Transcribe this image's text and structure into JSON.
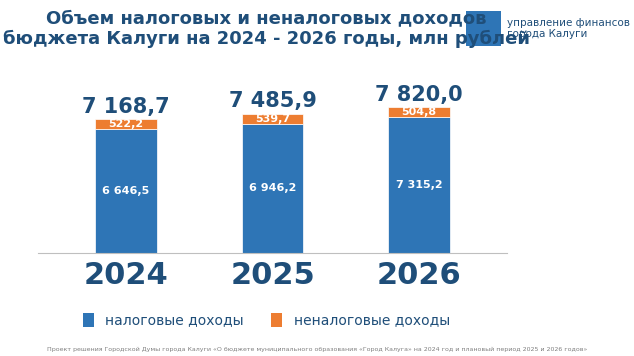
{
  "chart_data": {
    "type": "bar",
    "title": "Объем налоговых и неналоговых доходов бюджета Калуги на 2024 - 2026 годы, млн рублей",
    "categories": [
      "2024",
      "2025",
      "2026"
    ],
    "series": [
      {
        "name": "налоговые доходы",
        "color": "#2E75B6",
        "values": [
          6646.5,
          6946.2,
          7315.2
        ],
        "value_labels": [
          "6 646,5",
          "6 946,2",
          "7 315,2"
        ]
      },
      {
        "name": "неналоговые доходы",
        "color": "#ED7D31",
        "values": [
          522.2,
          539.7,
          504.8
        ],
        "value_labels": [
          "522,2",
          "539,7",
          "504,8"
        ]
      }
    ],
    "totals": {
      "values": [
        7168.7,
        7485.9,
        7820.0
      ],
      "value_labels": [
        "7 168,7",
        "7 485,9",
        "7 820,0"
      ]
    },
    "ylim": [
      0,
      9000
    ],
    "stacked": true,
    "data_labels": true,
    "legend": "lower center",
    "tick_labels": "x",
    "annotations": [
      "управление финансов города Калуги",
      "Проект решения Городской Думы города Калуги «О бюджете муниципального образования «Город Калуга» на 2024 год и плановый период 2025 и 2026 годов»"
    ]
  }
}
